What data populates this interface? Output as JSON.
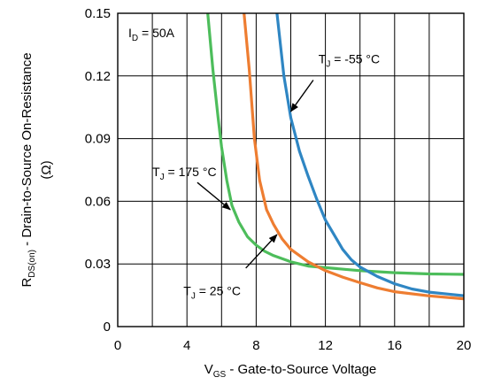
{
  "chart_data": {
    "type": "line",
    "xlabel": {
      "main": "V",
      "sub": "GS",
      "rest": " - Gate-to-Source Voltage"
    },
    "ylabel": {
      "main": "R",
      "sub": "DS(on)",
      "rest": " - Drain-to-Source On-Resistance",
      "unit": "(Ω)"
    },
    "xlim": [
      0,
      20
    ],
    "ylim": [
      0,
      0.15
    ],
    "x_ticks": [
      "0",
      "4",
      "8",
      "12",
      "16",
      "20"
    ],
    "x_tick_values": [
      0,
      4,
      8,
      12,
      16,
      20
    ],
    "x_grid_values": [
      0,
      2,
      4,
      6,
      8,
      10,
      12,
      14,
      16,
      18,
      20
    ],
    "y_ticks": [
      "0",
      "0.03",
      "0.06",
      "0.09",
      "0.12",
      "0.15"
    ],
    "y_tick_values": [
      0,
      0.03,
      0.06,
      0.09,
      0.12,
      0.15
    ],
    "grid": true,
    "condition": {
      "main": "I",
      "sub": "D",
      "rest": " = 50A"
    },
    "series": [
      {
        "label_main": "T",
        "label_sub": "J",
        "label_rest": " = 175 °C",
        "color": "#4dbd5b",
        "points": [
          [
            5.2,
            0.15
          ],
          [
            5.5,
            0.123
          ],
          [
            5.8,
            0.1
          ],
          [
            6.0,
            0.086
          ],
          [
            6.3,
            0.07
          ],
          [
            6.6,
            0.058
          ],
          [
            7.0,
            0.05
          ],
          [
            7.5,
            0.043
          ],
          [
            8.0,
            0.039
          ],
          [
            8.5,
            0.036
          ],
          [
            9.0,
            0.034
          ],
          [
            10.0,
            0.031
          ],
          [
            11.0,
            0.029
          ],
          [
            12.0,
            0.0282
          ],
          [
            14.0,
            0.0268
          ],
          [
            16.0,
            0.0258
          ],
          [
            18.0,
            0.0252
          ],
          [
            20.0,
            0.025
          ]
        ]
      },
      {
        "label_main": "T",
        "label_sub": "J",
        "label_rest": " = 25 °C",
        "color": "#ee7d31",
        "points": [
          [
            7.3,
            0.15
          ],
          [
            7.6,
            0.123
          ],
          [
            7.9,
            0.09
          ],
          [
            8.2,
            0.07
          ],
          [
            8.6,
            0.056
          ],
          [
            9.0,
            0.049
          ],
          [
            9.5,
            0.042
          ],
          [
            10.0,
            0.037
          ],
          [
            11.0,
            0.031
          ],
          [
            12.0,
            0.0268
          ],
          [
            13.0,
            0.0237
          ],
          [
            14.0,
            0.021
          ],
          [
            15.0,
            0.0185
          ],
          [
            16.0,
            0.0167
          ],
          [
            18.0,
            0.0147
          ],
          [
            20.0,
            0.0133
          ]
        ]
      },
      {
        "label_main": "T",
        "label_sub": "J",
        "label_rest": " = -55 °C",
        "color": "#2f86c3",
        "points": [
          [
            9.2,
            0.15
          ],
          [
            9.6,
            0.12
          ],
          [
            10.0,
            0.1
          ],
          [
            10.5,
            0.084
          ],
          [
            11.0,
            0.072
          ],
          [
            11.5,
            0.061
          ],
          [
            12.0,
            0.051
          ],
          [
            12.5,
            0.044
          ],
          [
            13.0,
            0.037
          ],
          [
            13.5,
            0.032
          ],
          [
            14.0,
            0.0285
          ],
          [
            15.0,
            0.024
          ],
          [
            16.0,
            0.0205
          ],
          [
            17.0,
            0.018
          ],
          [
            18.0,
            0.0165
          ],
          [
            20.0,
            0.0148
          ]
        ]
      }
    ],
    "annotations": [
      {
        "series": 2,
        "text_at": [
          11.6,
          0.126
        ],
        "arrow_from": [
          11.3,
          0.118
        ],
        "arrow_to": [
          10.0,
          0.103
        ]
      },
      {
        "series": 0,
        "text_at": [
          2.0,
          0.072
        ],
        "arrow_from": [
          4.6,
          0.069
        ],
        "arrow_to": [
          6.5,
          0.056
        ]
      },
      {
        "series": 1,
        "text_at": [
          3.8,
          0.015
        ],
        "arrow_from": [
          7.4,
          0.028
        ],
        "arrow_to": [
          9.2,
          0.044
        ]
      }
    ]
  }
}
